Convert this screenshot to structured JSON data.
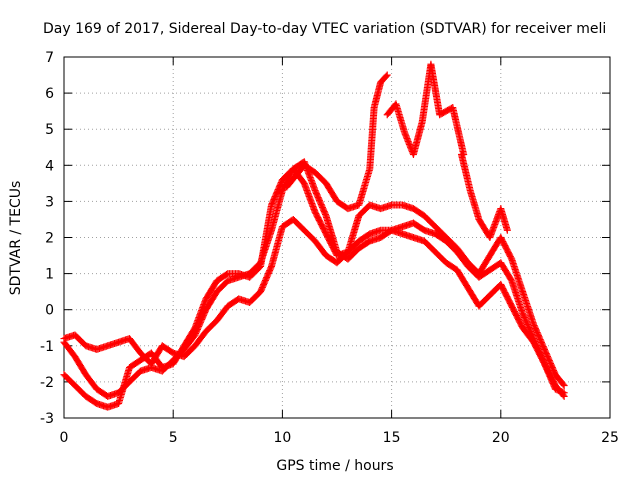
{
  "chart_data": {
    "type": "scatter",
    "title": "Day 169 of 2017, Sidereal Day-to-day VTEC variation (SDTVAR) for receiver meli",
    "xlabel": "GPS time / hours",
    "ylabel": "SDTVAR / TECUs",
    "xlim": [
      0,
      25
    ],
    "ylim": [
      -3,
      7
    ],
    "xticks": [
      0,
      5,
      10,
      15,
      20,
      25
    ],
    "yticks": [
      -3,
      -2,
      -1,
      0,
      1,
      2,
      3,
      4,
      5,
      6,
      7
    ],
    "grid": true,
    "marker": "+",
    "color": "#ff0000",
    "series": [
      {
        "x": [
          0,
          0.5,
          1,
          1.5,
          2,
          2.5,
          3,
          3.5,
          4,
          4.5,
          5,
          5.5,
          6,
          6.5,
          7,
          7.5,
          8,
          8.5,
          9,
          9.5,
          10,
          10.5,
          11,
          11.5,
          12,
          12.5,
          13,
          13.5,
          14,
          14.5,
          15,
          15.5,
          16,
          16.5,
          17,
          17.5,
          18,
          18.5,
          19,
          19.5,
          20,
          20.5,
          21,
          21.5,
          22,
          22.5,
          22.9
        ],
        "y": [
          -0.8,
          -0.7,
          -1.0,
          -1.1,
          -1.0,
          -0.9,
          -0.8,
          -1.2,
          -1.5,
          -1.0,
          -1.2,
          -1.3,
          -1.0,
          -0.6,
          -0.3,
          0.1,
          0.3,
          0.2,
          0.5,
          1.2,
          2.3,
          2.5,
          2.2,
          1.9,
          1.5,
          1.3,
          1.6,
          1.9,
          2.1,
          2.2,
          2.2,
          2.1,
          2.0,
          1.9,
          1.6,
          1.3,
          1.1,
          0.6,
          0.1,
          0.4,
          0.7,
          0.1,
          -0.5,
          -0.9,
          -1.5,
          -2.1,
          -2.4
        ]
      },
      {
        "x": [
          0,
          0.5,
          1,
          1.5,
          2,
          2.5,
          3,
          3.5,
          4,
          4.5,
          5,
          5.5,
          6,
          6.5,
          7,
          7.5,
          8,
          8.5,
          9,
          9.5,
          10,
          10.5,
          11,
          11.5,
          12,
          12.5,
          13,
          13.5,
          14,
          14.5,
          15,
          15.5,
          16,
          16.5,
          17,
          17.5,
          18,
          18.5,
          19,
          19.5,
          20,
          20.5,
          21,
          21.5,
          22,
          22.5,
          22.9
        ],
        "y": [
          -0.9,
          -1.3,
          -1.8,
          -2.2,
          -2.4,
          -2.3,
          -2.0,
          -1.7,
          -1.6,
          -1.7,
          -1.4,
          -1.1,
          -0.7,
          0.0,
          0.5,
          0.8,
          0.9,
          1.0,
          1.3,
          2.2,
          3.3,
          3.9,
          4.1,
          3.3,
          2.6,
          1.6,
          1.4,
          1.7,
          1.9,
          2.0,
          2.2,
          2.3,
          2.4,
          2.2,
          2.1,
          1.9,
          1.6,
          1.2,
          0.9,
          1.1,
          1.3,
          0.8,
          -0.1,
          -0.8,
          -1.5,
          -2.2,
          -2.3
        ]
      },
      {
        "x": [
          0,
          0.5,
          1,
          1.5,
          2,
          2.5,
          3,
          3.5,
          4,
          4.5,
          5,
          5.5,
          6,
          6.5,
          7,
          7.5,
          8,
          8.5,
          9,
          9.5,
          10,
          10.5,
          11,
          11.5,
          12,
          12.5,
          13,
          13.5,
          14,
          14.5,
          15,
          15.5,
          16,
          16.5,
          17,
          17.5,
          18,
          18.5,
          19,
          19.5,
          20,
          20.5,
          21,
          21.5,
          22,
          22.5,
          22.9
        ],
        "y": [
          -1.8,
          -2.1,
          -2.4,
          -2.6,
          -2.7,
          -2.6,
          -1.6,
          -1.4,
          -1.2,
          -1.6,
          -1.5,
          -1.0,
          -0.5,
          0.3,
          0.8,
          1.0,
          1.0,
          0.9,
          1.2,
          2.9,
          3.6,
          3.9,
          3.5,
          2.7,
          2.1,
          1.5,
          1.6,
          2.6,
          2.9,
          2.8,
          2.9,
          2.9,
          2.8,
          2.6,
          2.3,
          2.0,
          1.7,
          1.3,
          1.0,
          1.5,
          2.0,
          1.4,
          0.5,
          -0.4,
          -1.1,
          -1.8,
          -2.1
        ]
      },
      {
        "x": [
          10.2,
          10.6,
          11,
          11.5,
          12,
          12.5,
          13,
          13.5,
          14,
          14.2,
          14.5,
          14.8
        ],
        "y": [
          3.4,
          3.7,
          4.0,
          3.8,
          3.5,
          3.0,
          2.8,
          2.9,
          3.9,
          5.6,
          6.3,
          6.5
        ]
      },
      {
        "x": [
          14.8,
          15.2,
          15.6,
          16,
          16.4,
          16.8,
          17.2,
          17.8,
          18.3
        ],
        "y": [
          5.4,
          5.7,
          4.9,
          4.3,
          5.2,
          6.8,
          5.4,
          5.6,
          4.3
        ]
      },
      {
        "x": [
          18.2,
          18.6,
          19,
          19.5,
          20,
          20.3
        ],
        "y": [
          4.3,
          3.3,
          2.5,
          2.0,
          2.8,
          2.2
        ]
      }
    ]
  }
}
